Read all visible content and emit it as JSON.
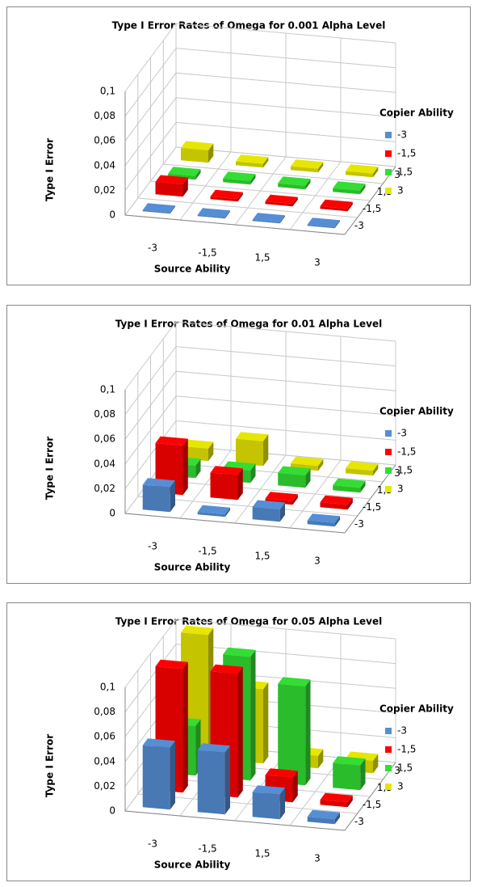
{
  "chart_data": [
    {
      "type": "bar3d",
      "title": "Type I Error Rates of Omega for 0.001 Alpha Level",
      "xlabel": "Source Ability",
      "ylabel": "Type I Error",
      "legend_title": "Copier Ability",
      "categories": [
        "-3",
        "-1,5",
        "1,5",
        "3"
      ],
      "series": [
        {
          "name": "-3",
          "color": "#558ed5",
          "values": [
            0.001,
            0.001,
            0.001,
            0.001
          ]
        },
        {
          "name": "-1,5",
          "color": "#ff0000",
          "values": [
            0.01,
            0.002,
            0.002,
            0.002
          ]
        },
        {
          "name": "1,5",
          "color": "#33dd33",
          "values": [
            0.003,
            0.003,
            0.003,
            0.003
          ]
        },
        {
          "name": "3",
          "color": "#e6e600",
          "values": [
            0.01,
            0.003,
            0.003,
            0.003
          ]
        }
      ],
      "ylim": [
        0,
        0.1
      ],
      "yticks": [
        0,
        {
          "value": 0.02,
          "label": "0,02"
        },
        {
          "value": 0.04,
          "label": "0,04"
        },
        {
          "value": 0.06,
          "label": "0,06"
        },
        {
          "value": 0.08,
          "label": "0,08"
        },
        {
          "value": 0.1,
          "label": "0,1"
        }
      ]
    },
    {
      "type": "bar3d",
      "title": "Type I Error Rates of Omega for 0.01 Alpha Level",
      "xlabel": "Source Ability",
      "ylabel": "Type I Error",
      "legend_title": "Copier Ability",
      "categories": [
        "-3",
        "-1,5",
        "1,5",
        "3"
      ],
      "series": [
        {
          "name": "-3",
          "color": "#558ed5",
          "values": [
            0.02,
            0.002,
            0.01,
            0.003
          ]
        },
        {
          "name": "-1,5",
          "color": "#ff0000",
          "values": [
            0.04,
            0.02,
            0.003,
            0.004
          ]
        },
        {
          "name": "1,5",
          "color": "#33dd33",
          "values": [
            0.01,
            0.01,
            0.01,
            0.004
          ]
        },
        {
          "name": "3",
          "color": "#e6e600",
          "values": [
            0.01,
            0.02,
            0.004,
            0.004
          ]
        }
      ],
      "ylim": [
        0,
        0.1
      ],
      "yticks": [
        0,
        {
          "value": 0.02,
          "label": "0,02"
        },
        {
          "value": 0.04,
          "label": "0,04"
        },
        {
          "value": 0.06,
          "label": "0,06"
        },
        {
          "value": 0.08,
          "label": "0,08"
        },
        {
          "value": 0.1,
          "label": "0,1"
        }
      ]
    },
    {
      "type": "bar3d",
      "title": "Type I Error Rates of Omega for 0.05 Alpha Level",
      "xlabel": "Source Ability",
      "ylabel": "Type I Error",
      "legend_title": "Copier Ability",
      "categories": [
        "-3",
        "-1,5",
        "1,5",
        "3"
      ],
      "series": [
        {
          "name": "-3",
          "color": "#558ed5",
          "values": [
            0.05,
            0.05,
            0.02,
            0.004
          ]
        },
        {
          "name": "-1,5",
          "color": "#ff0000",
          "values": [
            0.1,
            0.1,
            0.02,
            0.004
          ]
        },
        {
          "name": "1,5",
          "color": "#33dd33",
          "values": [
            0.04,
            0.1,
            0.08,
            0.02
          ]
        },
        {
          "name": "3",
          "color": "#e6e600",
          "values": [
            0.1,
            0.06,
            0.01,
            0.01
          ]
        }
      ],
      "ylim": [
        0,
        0.1
      ],
      "yticks": [
        0,
        {
          "value": 0.02,
          "label": "0,02"
        },
        {
          "value": 0.04,
          "label": "0,04"
        },
        {
          "value": 0.06,
          "label": "0,06"
        },
        {
          "value": 0.08,
          "label": "0,08"
        },
        {
          "value": 0.1,
          "label": "0,1"
        }
      ]
    }
  ]
}
